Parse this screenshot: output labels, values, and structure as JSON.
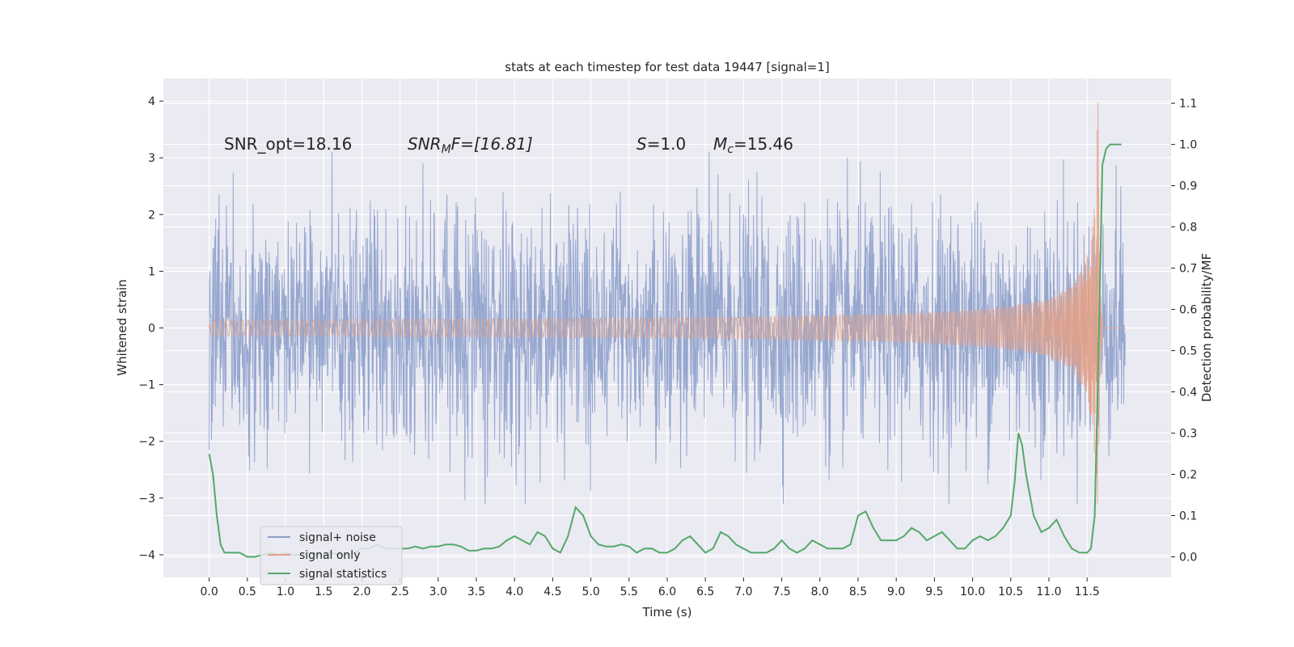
{
  "chart_data": {
    "type": "line",
    "title": "stats at each timestep for test data 19447 [signal=1]",
    "xlabel": "Time (s)",
    "ylabel": "Whitened strain",
    "y2label": "Detection probability/MF",
    "xlim": [
      -0.6,
      12.6
    ],
    "ylim": [
      -4.4,
      4.4
    ],
    "y2lim": [
      -0.05,
      1.16
    ],
    "grid": true,
    "legend_position": "lower-left",
    "x_ticks": [
      0.0,
      0.5,
      1.0,
      1.5,
      2.0,
      2.5,
      3.0,
      3.5,
      4.0,
      4.5,
      5.0,
      5.5,
      6.0,
      6.5,
      7.0,
      7.5,
      8.0,
      8.5,
      9.0,
      9.5,
      10.0,
      10.5,
      11.0,
      11.5
    ],
    "x_tick_labels": [
      "0.0",
      "0.5",
      "1.0",
      "1.5",
      "2.0",
      "2.5",
      "3.0",
      "3.5",
      "4.0",
      "4.5",
      "5.0",
      "5.5",
      "6.0",
      "6.5",
      "7.0",
      "7.5",
      "8.0",
      "8.5",
      "9.0",
      "9.5",
      "10.0",
      "10.5",
      "11.0",
      "11.5"
    ],
    "y_ticks": [
      -4,
      -3,
      -2,
      -1,
      0,
      1,
      2,
      3,
      4
    ],
    "y_tick_labels": [
      "−4",
      "−3",
      "−2",
      "−1",
      "0",
      "1",
      "2",
      "3",
      "4"
    ],
    "y2_ticks": [
      0.0,
      0.1,
      0.2,
      0.3,
      0.4,
      0.5,
      0.6,
      0.7,
      0.8,
      0.9,
      1.0,
      1.1
    ],
    "y2_tick_labels": [
      "0.0",
      "0.1",
      "0.2",
      "0.3",
      "0.4",
      "0.5",
      "0.6",
      "0.7",
      "0.8",
      "0.9",
      "1.0",
      "1.1"
    ],
    "annotations": {
      "snr_opt": "SNR_opt=18.16",
      "snr_mf_main": "SNR",
      "snr_mf_sub": "M",
      "snr_mf_rest": "F=[16.81]",
      "s_main": "S",
      "s_rest": "=1.0",
      "mc_main": "M",
      "mc_sub": "c",
      "mc_rest": "=15.46"
    },
    "series": [
      {
        "name": "signal+ noise",
        "color": "#8da0cb",
        "t_start": 0.0,
        "t_end": 12.0,
        "description_values": "noisy whitened strain, envelope roughly ±1.3 with peaks up to ±3.1"
      },
      {
        "name": "signal only",
        "color": "#e5a085",
        "t_start": 0.0,
        "t_end": 12.0,
        "chirp_peak_time": 11.65,
        "chirp_peak_amplitude": 4.0
      },
      {
        "name": "signal statistics",
        "color": "#55a868",
        "axis": "right",
        "x": [
          0.0,
          0.05,
          0.1,
          0.15,
          0.2,
          0.3,
          0.4,
          0.5,
          0.6,
          0.7,
          0.8,
          0.9,
          1.0,
          1.1,
          1.2,
          1.3,
          1.4,
          1.5,
          1.6,
          1.7,
          1.8,
          1.9,
          2.0,
          2.1,
          2.2,
          2.3,
          2.4,
          2.5,
          2.6,
          2.7,
          2.8,
          2.9,
          3.0,
          3.1,
          3.2,
          3.3,
          3.4,
          3.5,
          3.6,
          3.7,
          3.8,
          3.9,
          4.0,
          4.1,
          4.2,
          4.3,
          4.4,
          4.5,
          4.6,
          4.7,
          4.8,
          4.9,
          5.0,
          5.1,
          5.2,
          5.3,
          5.4,
          5.5,
          5.6,
          5.7,
          5.8,
          5.9,
          6.0,
          6.1,
          6.2,
          6.3,
          6.4,
          6.5,
          6.6,
          6.7,
          6.8,
          6.9,
          7.0,
          7.1,
          7.2,
          7.3,
          7.4,
          7.5,
          7.6,
          7.7,
          7.8,
          7.9,
          8.0,
          8.1,
          8.2,
          8.3,
          8.4,
          8.5,
          8.6,
          8.7,
          8.8,
          8.9,
          9.0,
          9.1,
          9.2,
          9.3,
          9.4,
          9.5,
          9.6,
          9.7,
          9.8,
          9.9,
          10.0,
          10.1,
          10.2,
          10.3,
          10.4,
          10.5,
          10.55,
          10.6,
          10.65,
          10.7,
          10.8,
          10.9,
          11.0,
          11.1,
          11.2,
          11.3,
          11.4,
          11.5,
          11.55,
          11.6,
          11.65,
          11.7,
          11.75,
          11.8,
          11.85,
          11.9,
          11.95
        ],
        "y": [
          0.25,
          0.2,
          0.1,
          0.03,
          0.01,
          0.01,
          0.01,
          0.0,
          0.0,
          0.005,
          0.01,
          0.005,
          0.01,
          0.005,
          0.005,
          0.01,
          0.005,
          0.005,
          0.01,
          0.005,
          0.005,
          0.01,
          0.02,
          0.02,
          0.03,
          0.02,
          0.02,
          0.02,
          0.02,
          0.025,
          0.02,
          0.025,
          0.025,
          0.03,
          0.03,
          0.025,
          0.015,
          0.015,
          0.02,
          0.02,
          0.025,
          0.04,
          0.05,
          0.04,
          0.03,
          0.06,
          0.05,
          0.02,
          0.01,
          0.05,
          0.12,
          0.1,
          0.05,
          0.03,
          0.025,
          0.025,
          0.03,
          0.025,
          0.01,
          0.02,
          0.02,
          0.01,
          0.01,
          0.02,
          0.04,
          0.05,
          0.03,
          0.01,
          0.02,
          0.06,
          0.05,
          0.03,
          0.02,
          0.01,
          0.01,
          0.01,
          0.02,
          0.04,
          0.02,
          0.01,
          0.02,
          0.04,
          0.03,
          0.02,
          0.02,
          0.02,
          0.03,
          0.1,
          0.11,
          0.07,
          0.04,
          0.04,
          0.04,
          0.05,
          0.07,
          0.06,
          0.04,
          0.05,
          0.06,
          0.04,
          0.02,
          0.02,
          0.04,
          0.05,
          0.04,
          0.05,
          0.07,
          0.1,
          0.18,
          0.3,
          0.27,
          0.2,
          0.1,
          0.06,
          0.07,
          0.09,
          0.05,
          0.02,
          0.01,
          0.01,
          0.02,
          0.1,
          0.5,
          0.95,
          0.99,
          1.0,
          1.0,
          1.0,
          1.0
        ]
      }
    ]
  }
}
